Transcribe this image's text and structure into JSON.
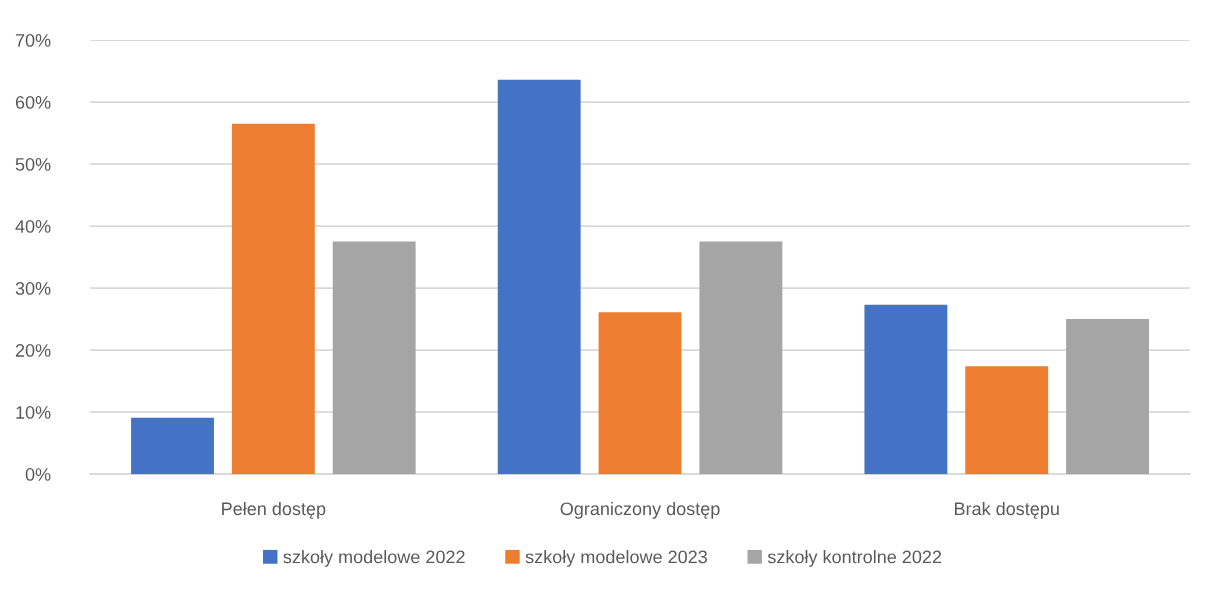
{
  "chart_data": {
    "type": "bar",
    "categories": [
      "Pełen dostęp",
      "Ograniczony dostęp",
      "Brak dostępu"
    ],
    "series": [
      {
        "name": "szkoły modelowe 2022",
        "color": "#4472c4",
        "values": [
          9.1,
          63.6,
          27.3
        ]
      },
      {
        "name": "szkoły modelowe 2023",
        "color": "#ed7d31",
        "values": [
          56.5,
          26.1,
          17.4
        ]
      },
      {
        "name": "szkoły kontrolne 2022",
        "color": "#a5a5a5",
        "values": [
          37.5,
          37.5,
          25.0
        ]
      }
    ],
    "ylim": [
      0,
      70
    ],
    "yticks": [
      {
        "value": 0,
        "label": "0%"
      },
      {
        "value": 10,
        "label": "10%"
      },
      {
        "value": 20,
        "label": "20%"
      },
      {
        "value": 30,
        "label": "30%"
      },
      {
        "value": 40,
        "label": "40%"
      },
      {
        "value": 50,
        "label": "50%"
      },
      {
        "value": 60,
        "label": "60%"
      },
      {
        "value": 70,
        "label": "70%"
      }
    ],
    "grid": "y",
    "legend": "bottom"
  }
}
